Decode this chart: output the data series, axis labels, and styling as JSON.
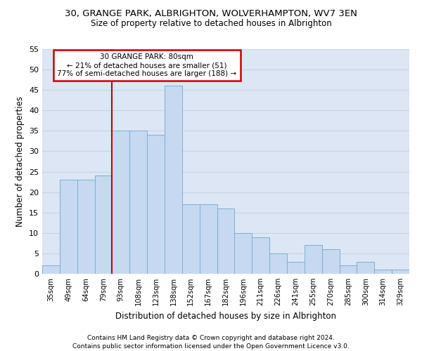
{
  "title1": "30, GRANGE PARK, ALBRIGHTON, WOLVERHAMPTON, WV7 3EN",
  "title2": "Size of property relative to detached houses in Albrighton",
  "xlabel": "Distribution of detached houses by size in Albrighton",
  "ylabel": "Number of detached properties",
  "footer1": "Contains HM Land Registry data © Crown copyright and database right 2024.",
  "footer2": "Contains public sector information licensed under the Open Government Licence v3.0.",
  "annotation_title": "30 GRANGE PARK: 80sqm",
  "annotation_line1": "← 21% of detached houses are smaller (51)",
  "annotation_line2": "77% of semi-detached houses are larger (188) →",
  "categories": [
    "35sqm",
    "49sqm",
    "64sqm",
    "79sqm",
    "93sqm",
    "108sqm",
    "123sqm",
    "138sqm",
    "152sqm",
    "167sqm",
    "182sqm",
    "196sqm",
    "211sqm",
    "226sqm",
    "241sqm",
    "255sqm",
    "270sqm",
    "285sqm",
    "300sqm",
    "314sqm",
    "329sqm"
  ],
  "bar_values": [
    2,
    23,
    23,
    24,
    35,
    35,
    34,
    46,
    17,
    17,
    16,
    10,
    9,
    5,
    3,
    7,
    6,
    2,
    3,
    1,
    1
  ],
  "redline_index": 3.5,
  "bar_color": "#c6d9f0",
  "bar_edgecolor": "#7bafd4",
  "redline_color": "#cc0000",
  "annotation_box_edgecolor": "#cc0000",
  "grid_color": "#c8d4e8",
  "bg_color": "#dce6f4",
  "ylim": [
    0,
    55
  ],
  "yticks": [
    0,
    5,
    10,
    15,
    20,
    25,
    30,
    35,
    40,
    45,
    50,
    55
  ]
}
